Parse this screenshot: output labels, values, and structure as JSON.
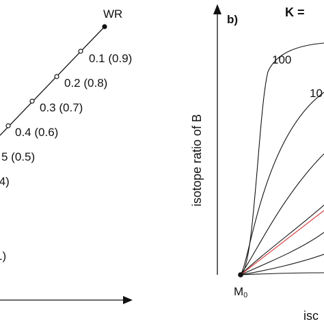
{
  "panel_a": {
    "endpoint_label": "WR",
    "tick_labels": [
      "0.1 (0.9)",
      "0.2 (0.8)",
      "0.3 (0.7)",
      "0.4 (0.6)",
      "5 (0.5)",
      ".4)",
      "1)"
    ]
  },
  "panel_b": {
    "panel_label": "b)",
    "k_label": "K =",
    "y_axis_label": "isotope ratio of B",
    "x_axis_label_partial": "isc",
    "origin_label": "M",
    "origin_subscript": "0",
    "curve_labels": [
      "100",
      "10"
    ]
  },
  "colors": {
    "ink": "#111111",
    "red_curve": "#d94040"
  }
}
